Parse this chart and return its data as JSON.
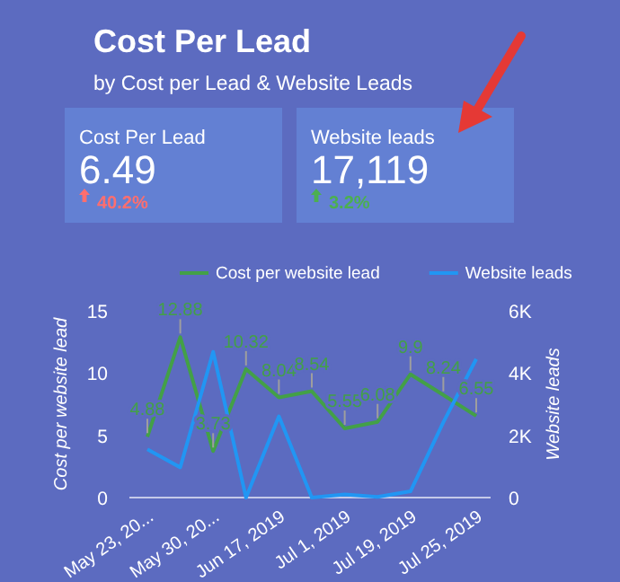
{
  "chart_data": [
    {
      "type": "other",
      "title": "Cost Per Lead",
      "subtitle": "by Cost per Lead & Website Leads"
    },
    {
      "type": "other",
      "title": "Cost Per Lead",
      "annotations": [
        "6.49",
        "40.2%"
      ],
      "colors": [
        "#ffffff",
        "#ff6e6e"
      ]
    },
    {
      "type": "other",
      "title": "Website leads",
      "annotations": [
        "17,119",
        "3.2%"
      ],
      "colors": [
        "#ffffff",
        "#4caf50"
      ]
    },
    {
      "type": "line",
      "categories": [
        "May 23, 20...",
        null,
        "May 30, 20...",
        null,
        "Jun 17, 2019",
        null,
        "Jul 1, 2019",
        null,
        "Jul 19, 2019",
        null,
        "Jul 25, 2019"
      ],
      "series": [
        {
          "name": "Cost per website lead",
          "color": "#43a047",
          "values": [
            4.88,
            12.88,
            3.73,
            10.32,
            8.04,
            8.54,
            5.55,
            6.08,
            9.9,
            8.24,
            6.55
          ],
          "value_labels": [
            "4.88",
            "12.88",
            "3.73",
            "10.32",
            "8.04",
            "8.54",
            "5.55",
            "6.08",
            "9.9",
            "8.24",
            "6.55"
          ]
        },
        {
          "name": "Website leads",
          "color": "#2196f3",
          "axis": "y2",
          "values": [
            1550,
            970,
            4680,
            0,
            2610,
            0,
            100,
            20,
            200,
            2420,
            4450
          ]
        }
      ],
      "ylabel": "Cost per website lead",
      "y2label": "Website leads",
      "ylim": [
        0,
        15
      ],
      "yticks": [
        0,
        5,
        10,
        15
      ],
      "y2lim": [
        0,
        6000
      ],
      "y2ticks": [
        0,
        {
          "value": 2000,
          "label": "2K"
        },
        {
          "value": 4000,
          "label": "4K"
        },
        {
          "value": 6000,
          "label": "6K"
        }
      ],
      "legend": "top"
    }
  ]
}
